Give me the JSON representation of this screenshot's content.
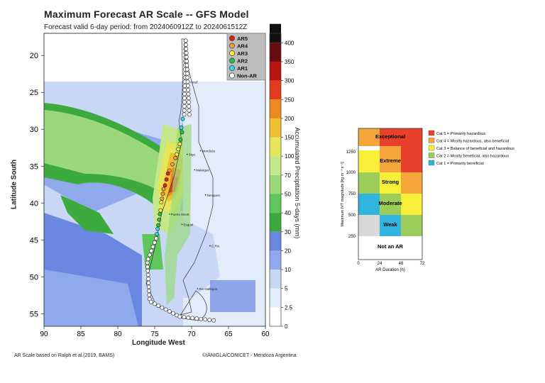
{
  "title": "Maximum Forecast AR Scale -- GFS Model",
  "subtitle": "Forecast valid 6-day period: from 2024060912Z to 2024061512Z",
  "map": {
    "ylabel": "Latitude South",
    "xlabel": "Longitude West",
    "lat_ticks": [
      "20",
      "25",
      "30",
      "35",
      "40",
      "45",
      "50",
      "55"
    ],
    "lon_ticks": [
      "90",
      "85",
      "80",
      "75",
      "70",
      "65",
      "60"
    ],
    "cities": [
      "Antof.",
      "Mendoza",
      "Stgo.",
      "Malargue",
      "Neuquen",
      "Esquel",
      "Rio Gallegos",
      "Puerto Montt",
      "C.Riv."
    ],
    "legend": [
      "AR5",
      "AR4",
      "AR3",
      "AR2",
      "AR1",
      "Non-AR"
    ],
    "legend_colors": [
      "#e0201e",
      "#f0a030",
      "#f5f035",
      "#30c040",
      "#30d8e8",
      "#ffffff"
    ]
  },
  "colorbar": {
    "label": "Accumulated Precipitation 5-days (mm)",
    "ticks": [
      "0",
      "2.5",
      "5",
      "10",
      "20",
      "30",
      "40",
      "50",
      "70",
      "100",
      "150",
      "200",
      "250",
      "300",
      "350",
      "400"
    ],
    "colors": [
      "#ffffff",
      "#e6eefb",
      "#c7d7f5",
      "#8fa9ec",
      "#6a87e2",
      "#3caa3c",
      "#5ec65a",
      "#9ad87a",
      "#c4e889",
      "#e6e65a",
      "#f0c030",
      "#ec8a22",
      "#e03c1e",
      "#b81414",
      "#6a0c0c",
      "#111111"
    ]
  },
  "ar_chart": {
    "ylabel": "Maximum IVT magnitude [kg m⁻¹ s⁻¹]",
    "xlabel": "AR Duration (h)",
    "y_ticks": [
      "1250",
      "1000",
      "750",
      "500",
      "250"
    ],
    "x_ticks": [
      "0",
      "24",
      "48",
      "72"
    ],
    "rows": [
      "Exceptional",
      "Extreme",
      "Strong",
      "Moderate",
      "Weak",
      "Not an AR"
    ],
    "legend": [
      {
        "label": "Cat 5 = Primarily hazardous",
        "color": "#e8402a"
      },
      {
        "label": "Cat 4 = Mostly hazardous, also beneficial",
        "color": "#f5a63a"
      },
      {
        "label": "Cat 3 = Balance of beneficial and hazardous",
        "color": "#f8f038"
      },
      {
        "label": "Cat 2 = Mostly beneficial, also hazardous",
        "color": "#9ccd5a"
      },
      {
        "label": "Cat 1 = Primarily beneficial",
        "color": "#2fb4e0"
      }
    ]
  },
  "footer": {
    "left": "AR Scale based on Ralph et al.(2019, BAMS)",
    "right": "©IANIGLA/CONICET - Mendoza Argentina"
  }
}
